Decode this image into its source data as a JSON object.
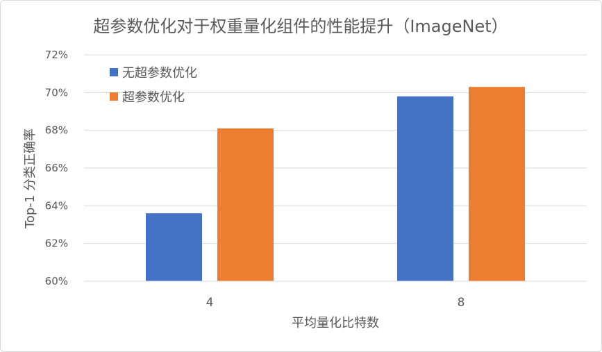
{
  "chart_data": {
    "type": "bar",
    "title": "超参数优化对于权重量化组件的性能提升（ImageNet）",
    "xlabel": "平均量化比特数",
    "ylabel": "Top-1 分类正确率",
    "categories": [
      "4",
      "8"
    ],
    "series": [
      {
        "name": "无超参数优化",
        "color": "#4472c4",
        "values": [
          63.6,
          69.8
        ]
      },
      {
        "name": "超参数优化",
        "color": "#ed7d31",
        "values": [
          68.1,
          70.3
        ]
      }
    ],
    "ylim": [
      60,
      72
    ],
    "yticks": [
      60,
      62,
      64,
      66,
      68,
      70,
      72
    ],
    "ytick_labels": [
      "60%",
      "62%",
      "64%",
      "66%",
      "68%",
      "70%",
      "72%"
    ],
    "grid": true,
    "legend_position": "top-left"
  }
}
